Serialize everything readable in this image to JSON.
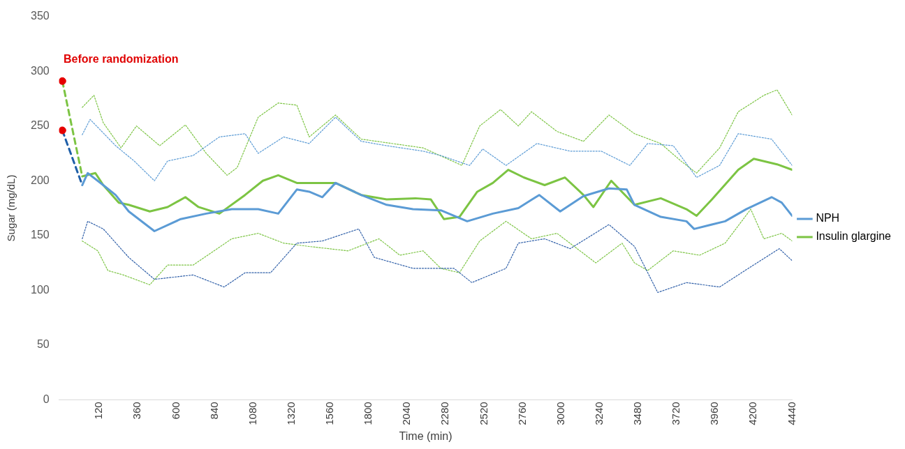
{
  "chart_data": {
    "type": "line",
    "xlabel": "Time (min)",
    "ylabel": "Sugar (mg/dL)",
    "annotations": [
      "Before randomization"
    ],
    "legend": "right",
    "xlim": [
      -130,
      4440
    ],
    "xticks": [
      120,
      360,
      600,
      840,
      1080,
      1320,
      1560,
      1800,
      2040,
      2280,
      2520,
      2760,
      3000,
      3240,
      3480,
      3720,
      3960,
      4200,
      4440
    ],
    "ylim": [
      0,
      350
    ],
    "yticks": [
      0,
      50,
      100,
      150,
      200,
      250,
      300,
      350
    ],
    "series": [
      {
        "name": "NPH",
        "color": "#5b9bd5",
        "line_style": "solid",
        "x": [
          14,
          48,
          145,
          222,
          304,
          464,
          628,
          787,
          946,
          1111,
          1236,
          1352,
          1429,
          1511,
          1593,
          1753,
          1912,
          2076,
          2250,
          2414,
          2574,
          2733,
          2863,
          2994,
          3139,
          3298,
          3409,
          3457,
          3621,
          3781,
          3829,
          4022,
          4153,
          4312,
          4375,
          4440
        ],
        "values": [
          196,
          207,
          196,
          187,
          172,
          154,
          165,
          170,
          174,
          174,
          170,
          192,
          190,
          185,
          198,
          187,
          178,
          174,
          173,
          163,
          170,
          175,
          187,
          172,
          186,
          193,
          192,
          178,
          167,
          163,
          156,
          163,
          174,
          185,
          180,
          168
        ]
      },
      {
        "name": "Insulin glargine",
        "color": "#7cc443",
        "line_style": "solid",
        "x": [
          14,
          96,
          145,
          242,
          304,
          435,
          546,
          657,
          739,
          869,
          1029,
          1140,
          1236,
          1352,
          1429,
          1593,
          1753,
          1912,
          2091,
          2187,
          2269,
          2366,
          2477,
          2574,
          2670,
          2767,
          2897,
          3023,
          3139,
          3201,
          3312,
          3457,
          3621,
          3781,
          3844,
          3940,
          4104,
          4201,
          4346,
          4440
        ],
        "values": [
          204,
          207,
          196,
          180,
          178,
          172,
          176,
          185,
          176,
          170,
          187,
          200,
          205,
          198,
          198,
          198,
          187,
          183,
          184,
          183,
          165,
          167,
          190,
          198,
          210,
          203,
          196,
          203,
          187,
          176,
          200,
          178,
          184,
          174,
          168,
          183,
          210,
          220,
          215,
          210
        ]
      },
      {
        "color": "#5b9bd5",
        "line_style": "dotted",
        "x": [
          14,
          63,
          222,
          338,
          464,
          546,
          705,
          869,
          1029,
          1111,
          1270,
          1429,
          1593,
          1753,
          1912,
          2139,
          2250,
          2429,
          2511,
          2656,
          2849,
          3056,
          3250,
          3428,
          3539,
          3699,
          3844,
          3988,
          4104,
          4312,
          4440
        ],
        "values": [
          242,
          256,
          232,
          218,
          200,
          218,
          223,
          240,
          243,
          225,
          240,
          234,
          258,
          236,
          232,
          227,
          223,
          214,
          229,
          214,
          234,
          227,
          227,
          214,
          234,
          232,
          203,
          214,
          243,
          238,
          214
        ]
      },
      {
        "color": "#7cc443",
        "line_style": "dotted",
        "x": [
          14,
          87,
          145,
          256,
          352,
          497,
          657,
          787,
          917,
          980,
          1111,
          1236,
          1352,
          1429,
          1593,
          1753,
          2139,
          2381,
          2492,
          2622,
          2733,
          2815,
          2974,
          3139,
          3298,
          3457,
          3621,
          3747,
          3844,
          3988,
          4104,
          4264,
          4346,
          4440
        ],
        "values": [
          267,
          278,
          253,
          230,
          250,
          232,
          251,
          225,
          205,
          212,
          258,
          271,
          269,
          240,
          260,
          238,
          230,
          214,
          250,
          265,
          250,
          263,
          245,
          236,
          260,
          243,
          234,
          218,
          207,
          230,
          263,
          278,
          283,
          260
        ]
      },
      {
        "color": "#2f5fa8",
        "line_style": "dotted",
        "x": [
          14,
          48,
          145,
          304,
          464,
          705,
          898,
          1029,
          1188,
          1352,
          1511,
          1738,
          1835,
          2076,
          2332,
          2443,
          2656,
          2733,
          2897,
          3056,
          3298,
          3457,
          3602,
          3781,
          3988,
          4167,
          4360,
          4440
        ],
        "values": [
          147,
          163,
          156,
          130,
          110,
          114,
          103,
          116,
          116,
          143,
          145,
          156,
          130,
          120,
          120,
          107,
          120,
          143,
          147,
          138,
          160,
          140,
          98,
          107,
          103,
          120,
          138,
          127
        ]
      },
      {
        "color": "#7cc443",
        "line_style": "dotted",
        "x": [
          14,
          111,
          174,
          270,
          435,
          546,
          705,
          946,
          1111,
          1270,
          1429,
          1671,
          1864,
          1994,
          2139,
          2250,
          2366,
          2492,
          2656,
          2815,
          2974,
          3216,
          3380,
          3457,
          3539,
          3699,
          3863,
          4022,
          4182,
          4264,
          4375,
          4440
        ],
        "values": [
          145,
          136,
          118,
          114,
          105,
          123,
          123,
          147,
          152,
          143,
          140,
          136,
          147,
          132,
          136,
          120,
          116,
          145,
          163,
          147,
          152,
          125,
          143,
          125,
          118,
          136,
          132,
          143,
          174,
          147,
          152,
          145
        ]
      },
      {
        "color": "#1f5fa8",
        "line_style": "dashed",
        "x": [
          -110,
          14
        ],
        "values": [
          246,
          196
        ]
      },
      {
        "color": "#7cc443",
        "line_style": "dashed",
        "x": [
          -110,
          14
        ],
        "values": [
          291,
          204
        ]
      },
      {
        "type": "scatter",
        "marker": "circle",
        "color": "#e60000",
        "x": [
          -110,
          -110
        ],
        "values": [
          246,
          291
        ]
      }
    ]
  }
}
